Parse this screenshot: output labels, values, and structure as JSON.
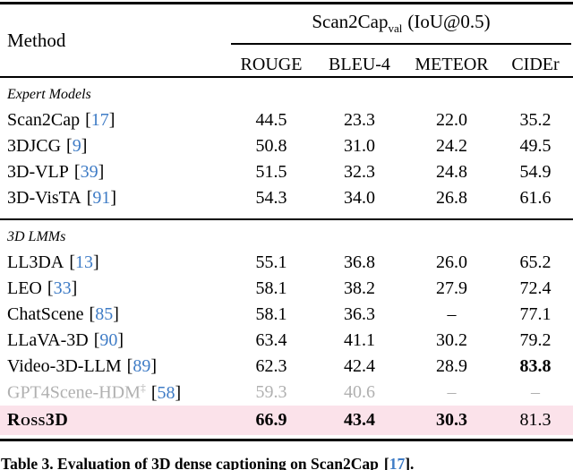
{
  "colors": {
    "citation_blue": "#3f7cc6",
    "dim_gray": "#b0b0b0",
    "highlight_pink": "#fbe2ea"
  },
  "table": {
    "cite_open": "[",
    "cite_close": "]",
    "header": {
      "method_label": "Method",
      "group": {
        "name": "Scan2Cap",
        "subscript": "val",
        "suffix": "(IoU@0.5)"
      },
      "columns": [
        "ROUGE",
        "BLEU-4",
        "METEOR",
        "CIDEr"
      ]
    },
    "sections": [
      {
        "label": "Expert Models",
        "rows": [
          {
            "method": "Scan2Cap",
            "cite": "17",
            "values": [
              "44.5",
              "23.3",
              "22.0",
              "35.2"
            ]
          },
          {
            "method": "3DJCG",
            "cite": "9",
            "values": [
              "50.8",
              "31.0",
              "24.2",
              "49.5"
            ]
          },
          {
            "method": "3D-VLP",
            "cite": "39",
            "values": [
              "51.5",
              "32.3",
              "24.8",
              "54.9"
            ]
          },
          {
            "method": "3D-VisTA",
            "cite": "91",
            "values": [
              "54.3",
              "34.0",
              "26.8",
              "61.6"
            ]
          }
        ]
      },
      {
        "label": "3D LMMs",
        "rows": [
          {
            "method": "LL3DA",
            "cite": "13",
            "values": [
              "55.1",
              "36.8",
              "26.0",
              "65.2"
            ]
          },
          {
            "method": "LEO",
            "cite": "33",
            "values": [
              "58.1",
              "38.2",
              "27.9",
              "72.4"
            ]
          },
          {
            "method": "ChatScene",
            "cite": "85",
            "values": [
              "58.1",
              "36.3",
              "–",
              "77.1"
            ]
          },
          {
            "method": "LLaVA-3D",
            "cite": "90",
            "values": [
              "63.4",
              "41.1",
              "30.2",
              "79.2"
            ]
          },
          {
            "method": "Video-3D-LLM",
            "cite": "89",
            "values": [
              "62.3",
              "42.4",
              "28.9",
              "83.8"
            ]
          },
          {
            "method": "GPT4Scene-HDM",
            "superscript": "‡",
            "cite": "58",
            "values": [
              "59.3",
              "40.6",
              "–",
              "–"
            ]
          },
          {
            "method": "Ross3D",
            "values": [
              "66.9",
              "43.4",
              "30.3",
              "81.3"
            ]
          }
        ]
      }
    ]
  },
  "caption": {
    "prefix": "Table 3. Evaluation of 3D dense captioning on Scan2Cap",
    "cite": "17",
    "suffix": "."
  }
}
